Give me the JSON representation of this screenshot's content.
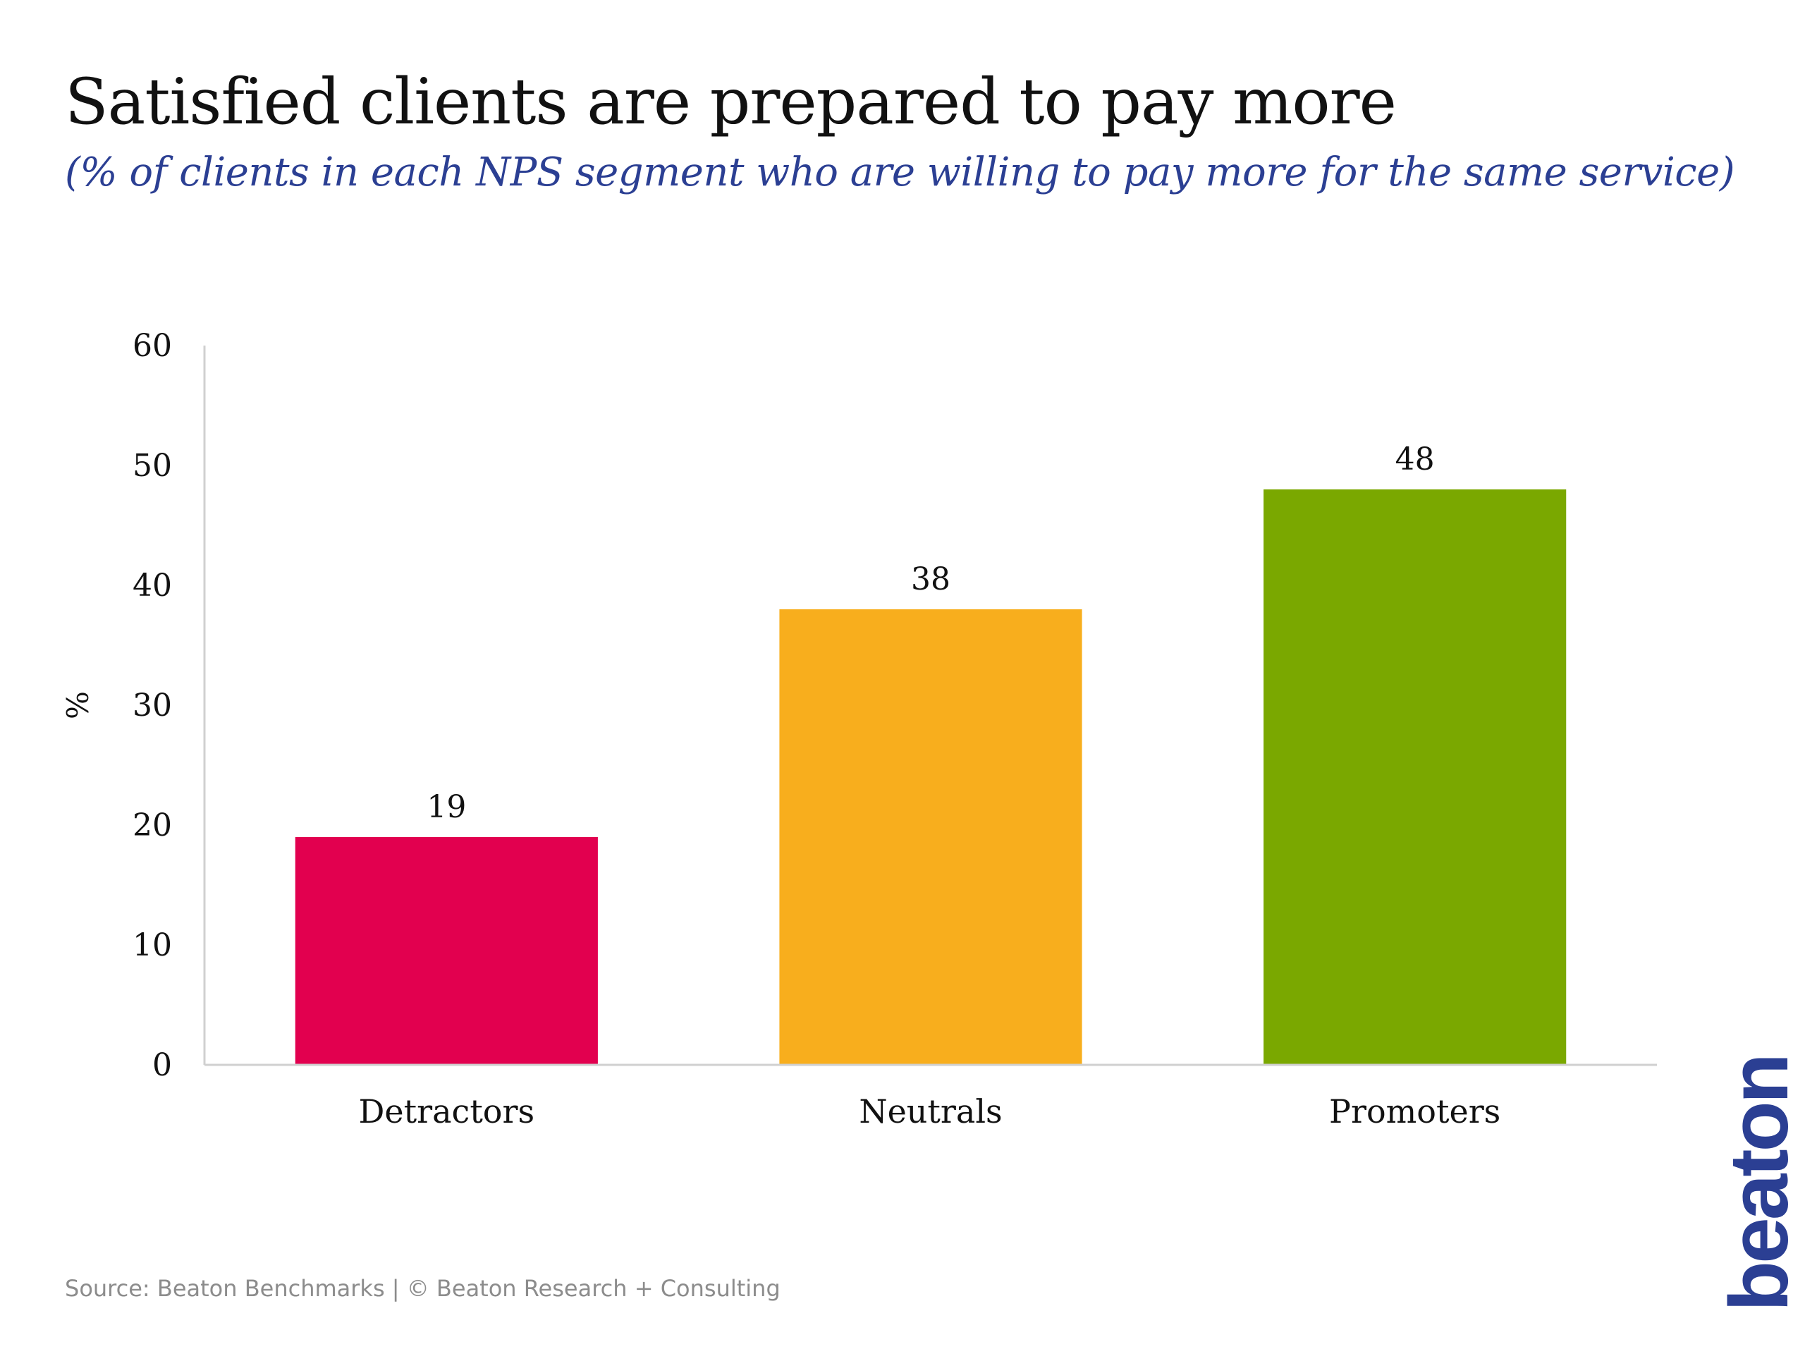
{
  "title": "Satisfied clients are prepared to pay more",
  "subtitle": "(% of clients in each NPS segment who are willing to pay more for the same service)",
  "source": "Source: Beaton Benchmarks | © Beaton Research + Consulting",
  "logo": {
    "text": "beaton",
    "color": "#2b3f93"
  },
  "chart_data": {
    "type": "bar",
    "title": "Satisfied clients are prepared to pay more",
    "subtitle": "(% of clients in each NPS segment who are willing to pay more for the same service)",
    "xlabel": "",
    "ylabel": "%",
    "ylim": [
      0,
      60
    ],
    "yticks": [
      0,
      10,
      20,
      30,
      40,
      50,
      60
    ],
    "grid": false,
    "categories": [
      "Detractors",
      "Neutrals",
      "Promoters"
    ],
    "values": [
      19,
      38,
      48
    ],
    "data_labels": [
      "19",
      "38",
      "48"
    ],
    "colors": [
      "#e2004f",
      "#f8ae1d",
      "#7aa800"
    ],
    "axis_color": "#d0d0d0"
  }
}
